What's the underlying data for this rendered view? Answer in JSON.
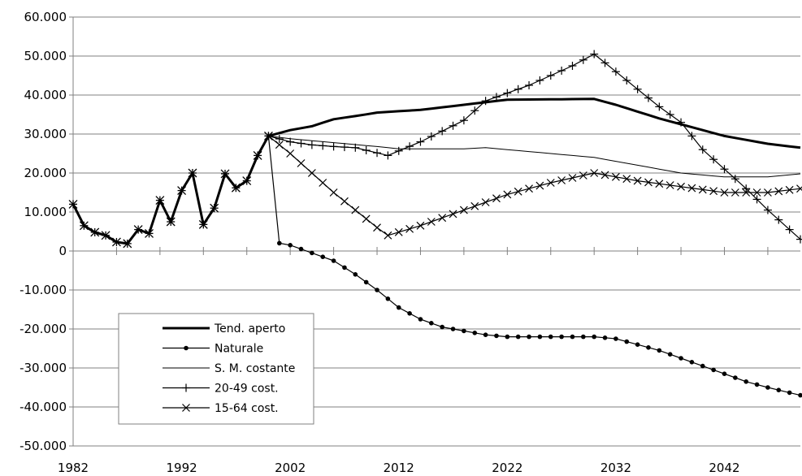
{
  "chart_data": {
    "type": "line",
    "title": "",
    "xlabel": "",
    "ylabel": "",
    "xlim": [
      1982,
      2049
    ],
    "ylim": [
      -50000,
      60000
    ],
    "grid": "horizontal",
    "legend_position": "bottom-left",
    "x_ticks": [
      {
        "value": 1982,
        "label": "1982"
      },
      {
        "value": 1992,
        "label": "1992"
      },
      {
        "value": 2002,
        "label": "2002"
      },
      {
        "value": 2012,
        "label": "2012"
      },
      {
        "value": 2022,
        "label": "2022"
      },
      {
        "value": 2032,
        "label": "2032"
      },
      {
        "value": 2042,
        "label": "2042"
      }
    ],
    "y_ticks": [
      {
        "value": 60000,
        "label": "60.000"
      },
      {
        "value": 50000,
        "label": "50.000"
      },
      {
        "value": 40000,
        "label": "40.000"
      },
      {
        "value": 30000,
        "label": "30.000"
      },
      {
        "value": 20000,
        "label": "20.000"
      },
      {
        "value": 10000,
        "label": "10.000"
      },
      {
        "value": 0,
        "label": "0"
      },
      {
        "value": -10000,
        "label": "-10.000"
      },
      {
        "value": -20000,
        "label": "-20.000"
      },
      {
        "value": -30000,
        "label": "-30.000"
      },
      {
        "value": -40000,
        "label": "-40.000"
      },
      {
        "value": -50000,
        "label": "-50.000"
      }
    ],
    "historical": {
      "x": [
        1982,
        1983,
        1984,
        1985,
        1986,
        1987,
        1988,
        1989,
        1990,
        1991,
        1992,
        1993,
        1994,
        1995,
        1996,
        1997,
        1998,
        1999,
        2000
      ],
      "y": [
        12000,
        6500,
        4800,
        4000,
        2300,
        1900,
        5500,
        4500,
        13000,
        7500,
        15500,
        20000,
        6800,
        11000,
        19800,
        16200,
        18000,
        24500,
        29500
      ]
    },
    "series": [
      {
        "name": "Tend. aperto",
        "style": "thick",
        "keypoints": [
          [
            2000,
            29500
          ],
          [
            2002,
            31000
          ],
          [
            2004,
            32000
          ],
          [
            2006,
            33800
          ],
          [
            2008,
            34600
          ],
          [
            2010,
            35500
          ],
          [
            2014,
            36200
          ],
          [
            2018,
            37500
          ],
          [
            2022,
            38800
          ],
          [
            2030,
            39000
          ],
          [
            2032,
            37500
          ],
          [
            2036,
            34000
          ],
          [
            2042,
            29500
          ],
          [
            2046,
            27500
          ],
          [
            2049,
            26500
          ]
        ]
      },
      {
        "name": "Naturale",
        "style": "dot",
        "keypoints": [
          [
            2000,
            29500
          ],
          [
            2001,
            2000
          ],
          [
            2002,
            1500
          ],
          [
            2004,
            -500
          ],
          [
            2006,
            -2500
          ],
          [
            2008,
            -6000
          ],
          [
            2010,
            -10000
          ],
          [
            2012,
            -14500
          ],
          [
            2014,
            -17500
          ],
          [
            2016,
            -19500
          ],
          [
            2018,
            -20500
          ],
          [
            2020,
            -21500
          ],
          [
            2022,
            -22000
          ],
          [
            2030,
            -22000
          ],
          [
            2032,
            -22500
          ],
          [
            2034,
            -24000
          ],
          [
            2036,
            -25500
          ],
          [
            2038,
            -27500
          ],
          [
            2040,
            -29500
          ],
          [
            2042,
            -31500
          ],
          [
            2044,
            -33500
          ],
          [
            2046,
            -35000
          ],
          [
            2049,
            -37000
          ]
        ]
      },
      {
        "name": "S. M. costante",
        "style": "thin",
        "keypoints": [
          [
            2000,
            29500
          ],
          [
            2002,
            28800
          ],
          [
            2006,
            27800
          ],
          [
            2010,
            26800
          ],
          [
            2012,
            26200
          ],
          [
            2018,
            26200
          ],
          [
            2020,
            26500
          ],
          [
            2022,
            26000
          ],
          [
            2026,
            25000
          ],
          [
            2030,
            24000
          ],
          [
            2034,
            22000
          ],
          [
            2038,
            20000
          ],
          [
            2042,
            19000
          ],
          [
            2046,
            19000
          ],
          [
            2049,
            19800
          ]
        ]
      },
      {
        "name": "20-49 cost.",
        "style": "plus",
        "keypoints": [
          [
            2000,
            29500
          ],
          [
            2002,
            28000
          ],
          [
            2004,
            27200
          ],
          [
            2006,
            26800
          ],
          [
            2008,
            26500
          ],
          [
            2011,
            24500
          ],
          [
            2014,
            28000
          ],
          [
            2018,
            33500
          ],
          [
            2020,
            38500
          ],
          [
            2024,
            42500
          ],
          [
            2028,
            47500
          ],
          [
            2030,
            50500
          ],
          [
            2032,
            46000
          ],
          [
            2036,
            37000
          ],
          [
            2038,
            33000
          ],
          [
            2040,
            26000
          ],
          [
            2044,
            16000
          ],
          [
            2046,
            10500
          ],
          [
            2049,
            3000
          ]
        ]
      },
      {
        "name": "15-64 cost.",
        "style": "cross",
        "keypoints": [
          [
            2000,
            29500
          ],
          [
            2002,
            25000
          ],
          [
            2004,
            20000
          ],
          [
            2006,
            15000
          ],
          [
            2008,
            10500
          ],
          [
            2010,
            6000
          ],
          [
            2011,
            4000
          ],
          [
            2014,
            6500
          ],
          [
            2018,
            10500
          ],
          [
            2022,
            14500
          ],
          [
            2026,
            17500
          ],
          [
            2030,
            20000
          ],
          [
            2034,
            18000
          ],
          [
            2038,
            16500
          ],
          [
            2042,
            15000
          ],
          [
            2046,
            15000
          ],
          [
            2049,
            16000
          ]
        ]
      }
    ]
  }
}
